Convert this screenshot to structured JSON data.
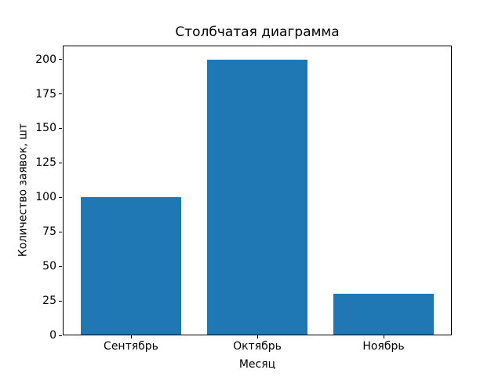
{
  "chart_data": {
    "type": "bar",
    "title": "Столбчатая диаграмма",
    "xlabel": "Месяц",
    "ylabel": "Количество заявок, шт",
    "categories": [
      "Сентябрь",
      "Октябрь",
      "Ноябрь"
    ],
    "values": [
      100,
      200,
      30
    ],
    "bar_color": "#1f77b4",
    "background_color": "#ffffff",
    "spine_color": "#000000",
    "ylim": [
      0,
      210
    ],
    "yticks": [
      0,
      25,
      50,
      75,
      100,
      125,
      150,
      175,
      200
    ],
    "xlim": [
      -0.54,
      2.54
    ],
    "bar_width": 0.8,
    "grid": false,
    "legend": null
  }
}
